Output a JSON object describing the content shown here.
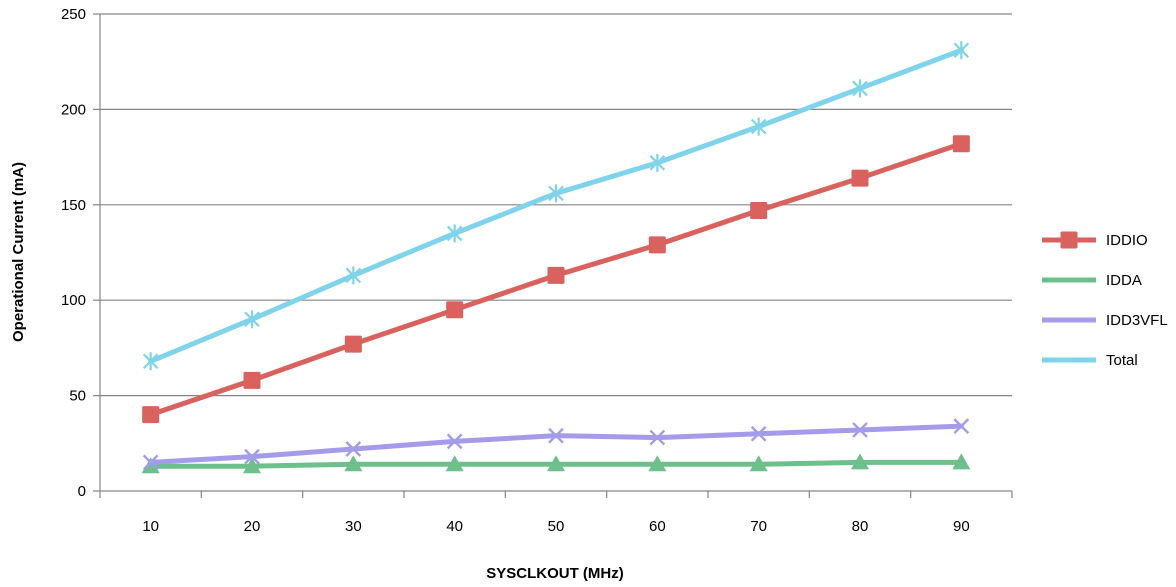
{
  "chart_data": {
    "type": "line",
    "title": "",
    "xlabel": "SYSCLKOUT (MHz)",
    "ylabel": "Operational Current (mA)",
    "x": [
      10,
      20,
      30,
      40,
      50,
      60,
      70,
      80,
      90
    ],
    "ylim": [
      0,
      250
    ],
    "yticks": [
      0,
      50,
      100,
      150,
      200,
      250
    ],
    "grid": true,
    "legend_position": "right",
    "series": [
      {
        "name": "IDDIO",
        "color": "#D9625E",
        "marker": "square",
        "values": [
          40,
          58,
          77,
          95,
          113,
          129,
          147,
          164,
          182
        ]
      },
      {
        "name": "IDDA",
        "color": "#6DBF8B",
        "marker": "triangle",
        "values": [
          13,
          13,
          14,
          14,
          14,
          14,
          14,
          15,
          15
        ]
      },
      {
        "name": "IDD3VFL",
        "color": "#A49BEA",
        "marker": "x",
        "values": [
          15,
          18,
          22,
          26,
          29,
          28,
          30,
          32,
          34
        ]
      },
      {
        "name": "Total",
        "color": "#7FD3EA",
        "marker": "star",
        "values": [
          68,
          90,
          113,
          135,
          156,
          172,
          191,
          211,
          231
        ]
      }
    ]
  }
}
